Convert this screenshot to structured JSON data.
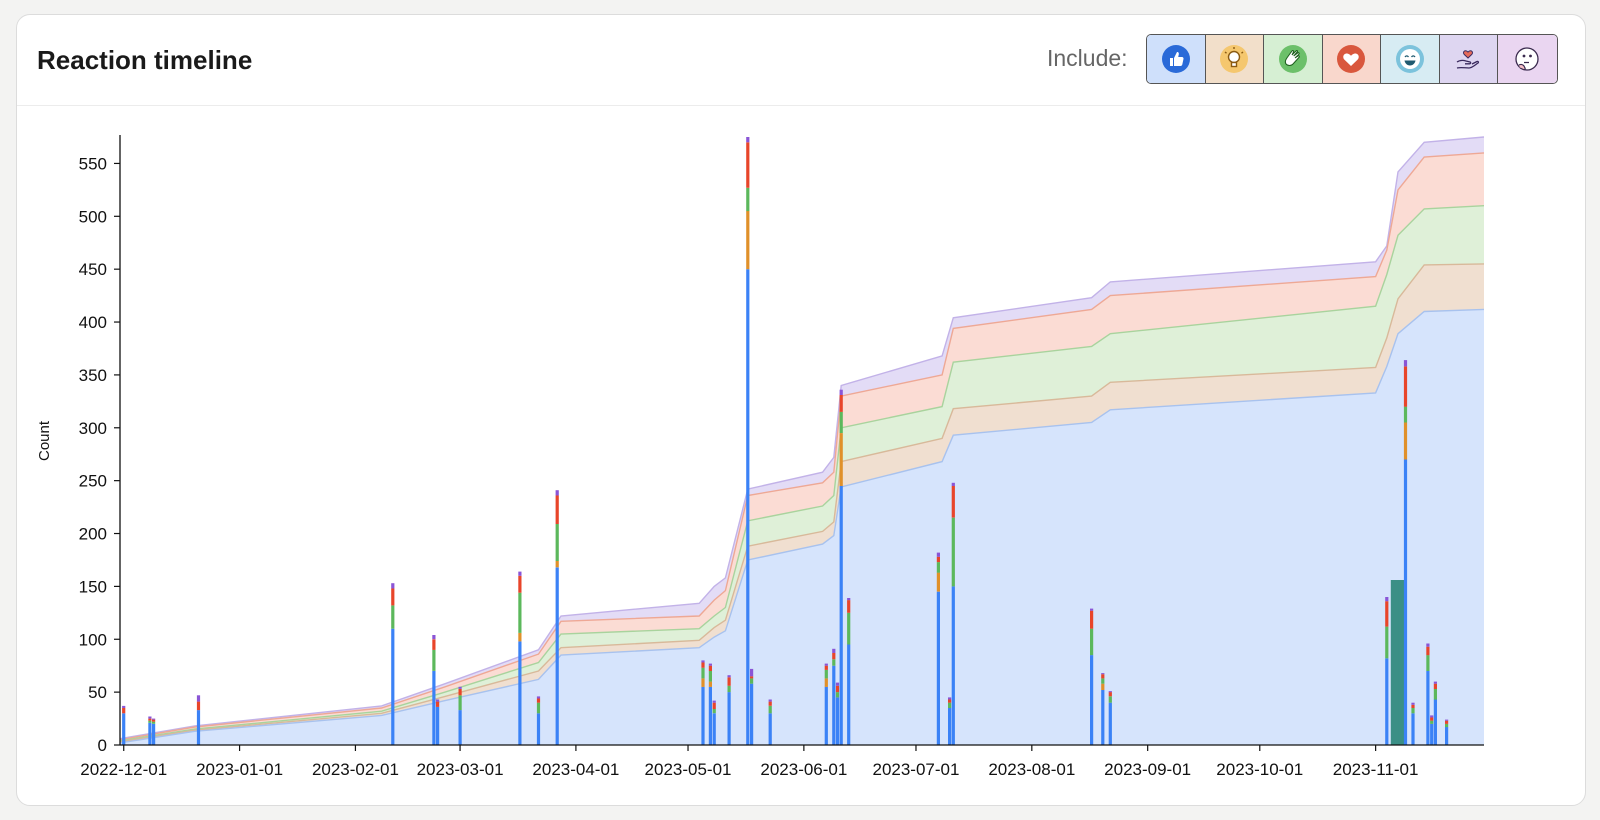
{
  "header": {
    "title": "Reaction timeline",
    "include_label": "Include:"
  },
  "filters": [
    {
      "name": "thumbs-up",
      "icon": "thumbs-up-icon",
      "bg": "#cfe0fb",
      "color": "#2a6ad8"
    },
    {
      "name": "lightbulb",
      "icon": "lightbulb-icon",
      "bg": "#f2dfca",
      "color": "#e3a33a"
    },
    {
      "name": "clapping",
      "icon": "clapping-hands-icon",
      "bg": "#d6efd3",
      "color": "#3e9a3a"
    },
    {
      "name": "heart",
      "icon": "heart-icon",
      "bg": "#f9d7cc",
      "color": "#d9573d"
    },
    {
      "name": "laughing",
      "icon": "laughing-face-icon",
      "bg": "#d7ecf3",
      "color": "#2f8bb0"
    },
    {
      "name": "heart-hand",
      "icon": "heart-in-hand-icon",
      "bg": "#ded6f1",
      "color": "#7a55c6"
    },
    {
      "name": "thinking",
      "icon": "thinking-face-icon",
      "bg": "#ead6f1",
      "color": "#a05ab8"
    }
  ],
  "chart_data": {
    "type": "area",
    "ylabel": "Count",
    "xlabel": "",
    "ylim": [
      0,
      575
    ],
    "yticks": [
      0,
      50,
      100,
      150,
      200,
      250,
      300,
      350,
      400,
      450,
      500,
      550
    ],
    "xlim": [
      "2022-11-30",
      "2023-11-30"
    ],
    "xticks": [
      "2022-12-01",
      "2023-01-01",
      "2023-02-01",
      "2023-03-01",
      "2023-04-01",
      "2023-05-01",
      "2023-06-01",
      "2023-07-01",
      "2023-08-01",
      "2023-09-01",
      "2023-10-01",
      "2023-11-01"
    ],
    "grid": false,
    "series_colors": {
      "like": "#3b82f6",
      "insightful": "#e0902a",
      "celebrate": "#5cb85c",
      "love": "#e8452a",
      "funny": "#3fa9c9",
      "support": "#8a55d6"
    },
    "area_fills": [
      "#d6e4fc",
      "#f0dfd0",
      "#dff0d8",
      "#fbdcd4",
      "#e3dcf6"
    ],
    "area_strokes": [
      "#a8c2ee",
      "#d8b99a",
      "#a9d39d",
      "#eea895",
      "#c2b2e8"
    ],
    "cumulative": [
      {
        "date": "2022-11-30",
        "values": [
          2,
          3,
          4,
          5,
          6
        ]
      },
      {
        "date": "2022-12-20",
        "values": [
          13,
          14,
          15,
          17,
          18
        ]
      },
      {
        "date": "2023-02-08",
        "values": [
          28,
          30,
          32,
          35,
          37
        ]
      },
      {
        "date": "2023-02-25",
        "values": [
          42,
          46,
          50,
          55,
          58
        ]
      },
      {
        "date": "2023-03-22",
        "values": [
          62,
          70,
          78,
          86,
          90
        ]
      },
      {
        "date": "2023-03-28",
        "values": [
          85,
          92,
          105,
          117,
          122
        ]
      },
      {
        "date": "2023-05-04",
        "values": [
          92,
          99,
          110,
          122,
          134
        ]
      },
      {
        "date": "2023-05-08",
        "values": [
          102,
          111,
          122,
          137,
          150
        ]
      },
      {
        "date": "2023-05-11",
        "values": [
          108,
          118,
          130,
          146,
          158
        ]
      },
      {
        "date": "2023-05-17",
        "values": [
          175,
          188,
          212,
          236,
          242
        ]
      },
      {
        "date": "2023-06-06",
        "values": [
          190,
          202,
          226,
          248,
          258
        ]
      },
      {
        "date": "2023-06-09",
        "values": [
          198,
          211,
          236,
          258,
          272
        ]
      },
      {
        "date": "2023-06-11",
        "values": [
          244,
          268,
          300,
          330,
          340
        ]
      },
      {
        "date": "2023-07-08",
        "values": [
          268,
          290,
          320,
          350,
          368
        ]
      },
      {
        "date": "2023-07-11",
        "values": [
          293,
          318,
          362,
          394,
          404
        ]
      },
      {
        "date": "2023-08-17",
        "values": [
          305,
          330,
          377,
          412,
          423
        ]
      },
      {
        "date": "2023-08-22",
        "values": [
          317,
          343,
          389,
          425,
          438
        ]
      },
      {
        "date": "2023-11-01",
        "values": [
          333,
          357,
          415,
          443,
          457
        ]
      },
      {
        "date": "2023-11-04",
        "values": [
          358,
          385,
          445,
          468,
          472
        ]
      },
      {
        "date": "2023-11-07",
        "values": [
          389,
          422,
          482,
          525,
          542
        ]
      },
      {
        "date": "2023-11-14",
        "values": [
          410,
          454,
          507,
          556,
          570
        ]
      },
      {
        "date": "2023-11-30",
        "values": [
          412,
          455,
          510,
          560,
          575
        ]
      }
    ],
    "bars": [
      {
        "date": "2022-12-01",
        "segments": [
          30,
          0,
          0,
          5,
          0,
          2
        ]
      },
      {
        "date": "2022-12-08",
        "segments": [
          21,
          0,
          2,
          2,
          0,
          2
        ]
      },
      {
        "date": "2022-12-09",
        "segments": [
          20,
          0,
          2,
          2,
          0,
          1
        ]
      },
      {
        "date": "2022-12-21",
        "segments": [
          33,
          0,
          0,
          8,
          0,
          6
        ]
      },
      {
        "date": "2023-02-11",
        "segments": [
          110,
          0,
          22,
          16,
          0,
          5
        ]
      },
      {
        "date": "2023-02-22",
        "segments": [
          70,
          0,
          20,
          10,
          0,
          4
        ]
      },
      {
        "date": "2023-02-23",
        "segments": [
          36,
          0,
          0,
          5,
          0,
          2
        ]
      },
      {
        "date": "2023-03-01",
        "segments": [
          33,
          0,
          14,
          6,
          0,
          2
        ]
      },
      {
        "date": "2023-03-17",
        "segments": [
          98,
          8,
          38,
          16,
          0,
          4
        ]
      },
      {
        "date": "2023-03-22",
        "segments": [
          30,
          0,
          10,
          4,
          0,
          2
        ]
      },
      {
        "date": "2023-03-27",
        "segments": [
          168,
          6,
          35,
          27,
          0,
          5
        ]
      },
      {
        "date": "2023-05-05",
        "segments": [
          55,
          8,
          10,
          5,
          0,
          2
        ]
      },
      {
        "date": "2023-05-07",
        "segments": [
          55,
          5,
          10,
          5,
          0,
          2
        ]
      },
      {
        "date": "2023-05-08",
        "segments": [
          30,
          0,
          4,
          6,
          0,
          2
        ]
      },
      {
        "date": "2023-05-12",
        "segments": [
          50,
          0,
          6,
          8,
          0,
          2
        ]
      },
      {
        "date": "2023-05-17",
        "segments": [
          450,
          55,
          22,
          43,
          0,
          5
        ]
      },
      {
        "date": "2023-05-18",
        "segments": [
          58,
          0,
          5,
          2,
          0,
          7
        ]
      },
      {
        "date": "2023-05-23",
        "segments": [
          30,
          0,
          7,
          4,
          0,
          2
        ]
      },
      {
        "date": "2023-06-07",
        "segments": [
          55,
          8,
          8,
          4,
          0,
          2
        ]
      },
      {
        "date": "2023-06-09",
        "segments": [
          75,
          0,
          6,
          6,
          0,
          4
        ]
      },
      {
        "date": "2023-06-10",
        "segments": [
          45,
          0,
          5,
          6,
          0,
          3
        ]
      },
      {
        "date": "2023-06-11",
        "segments": [
          245,
          50,
          20,
          16,
          0,
          5
        ]
      },
      {
        "date": "2023-06-13",
        "segments": [
          95,
          0,
          30,
          12,
          0,
          2
        ]
      },
      {
        "date": "2023-07-07",
        "segments": [
          145,
          18,
          10,
          5,
          0,
          4
        ]
      },
      {
        "date": "2023-07-10",
        "segments": [
          35,
          0,
          5,
          3,
          0,
          2
        ]
      },
      {
        "date": "2023-07-11",
        "segments": [
          150,
          0,
          65,
          30,
          0,
          3
        ]
      },
      {
        "date": "2023-08-17",
        "segments": [
          85,
          0,
          25,
          17,
          0,
          2
        ]
      },
      {
        "date": "2023-08-20",
        "segments": [
          52,
          6,
          5,
          4,
          0,
          1
        ]
      },
      {
        "date": "2023-08-22",
        "segments": [
          40,
          0,
          6,
          4,
          0,
          1
        ]
      },
      {
        "date": "2023-11-04",
        "segments": [
          82,
          0,
          30,
          24,
          0,
          4
        ]
      },
      {
        "date": "2023-11-06",
        "segments": [
          0,
          0,
          0,
          0,
          156,
          0
        ]
      },
      {
        "date": "2023-11-07",
        "segments": [
          0,
          0,
          0,
          0,
          156,
          0
        ]
      },
      {
        "date": "2023-11-08",
        "segments": [
          0,
          0,
          0,
          0,
          156,
          0
        ]
      },
      {
        "date": "2023-11-09",
        "segments": [
          270,
          35,
          15,
          38,
          0,
          6
        ]
      },
      {
        "date": "2023-11-11",
        "segments": [
          30,
          0,
          5,
          3,
          0,
          2
        ]
      },
      {
        "date": "2023-11-15",
        "segments": [
          70,
          0,
          15,
          8,
          0,
          3
        ]
      },
      {
        "date": "2023-11-16",
        "segments": [
          20,
          0,
          3,
          3,
          0,
          2
        ]
      },
      {
        "date": "2023-11-17",
        "segments": [
          43,
          0,
          10,
          5,
          0,
          2
        ]
      },
      {
        "date": "2023-11-20",
        "segments": [
          17,
          0,
          3,
          3,
          0,
          1
        ]
      }
    ]
  }
}
